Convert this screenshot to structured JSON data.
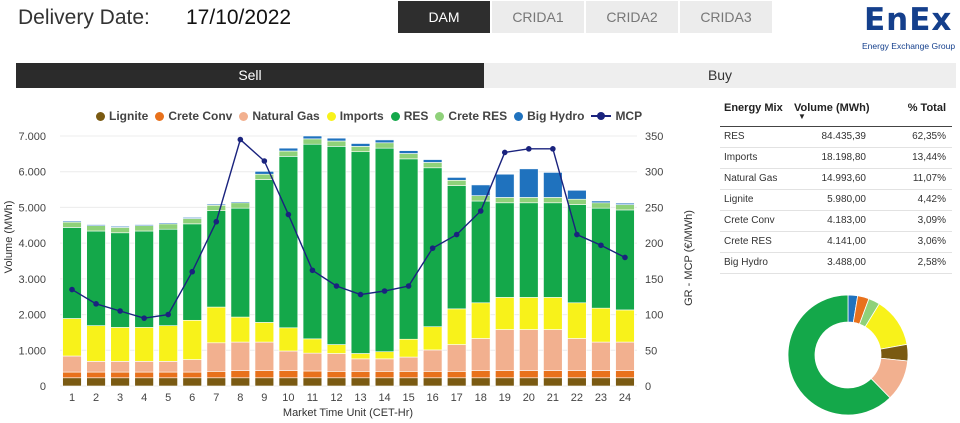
{
  "header": {
    "date_label": "Delivery Date:",
    "date_value": "17/10/2022",
    "tabs": [
      {
        "label": "DAM",
        "active": true
      },
      {
        "label": "CRIDA1",
        "active": false
      },
      {
        "label": "CRIDA2",
        "active": false
      },
      {
        "label": "CRIDA3",
        "active": false
      }
    ],
    "logo_text": "EnEx",
    "logo_subtitle": "Energy Exchange Group"
  },
  "side_toggle": {
    "sell_label": "Sell",
    "buy_label": "Buy",
    "selected": "Sell"
  },
  "colors": {
    "Lignite": "#7a5a12",
    "Crete Conv": "#e8711c",
    "Natural Gas": "#f2b08f",
    "Imports": "#f8f21a",
    "RES": "#14a84a",
    "Crete RES": "#8fd17a",
    "Big Hydro": "#1f72be",
    "MCP": "#1a237e"
  },
  "chart_data": {
    "type": "bar",
    "stacked": true,
    "xlabel": "Market Time Unit (CET-Hr)",
    "ylabel": "Volume (MWh)",
    "y2label": "GR - MCP (€/MWh)",
    "ylim": [
      0,
      7000
    ],
    "y2lim": [
      0,
      350
    ],
    "yticks": [
      "0",
      "1.000",
      "2.000",
      "3.000",
      "4.000",
      "5.000",
      "6.000",
      "7.000"
    ],
    "y2ticks": [
      "0",
      "50",
      "100",
      "150",
      "200",
      "250",
      "300",
      "350"
    ],
    "categories": [
      "1",
      "2",
      "3",
      "4",
      "5",
      "6",
      "7",
      "8",
      "9",
      "10",
      "11",
      "12",
      "13",
      "14",
      "15",
      "16",
      "17",
      "18",
      "19",
      "20",
      "21",
      "22",
      "23",
      "24"
    ],
    "legend_position": "top",
    "series": [
      {
        "name": "Lignite",
        "values": [
          230,
          230,
          230,
          230,
          230,
          230,
          230,
          230,
          230,
          230,
          230,
          230,
          230,
          230,
          230,
          230,
          230,
          230,
          230,
          230,
          230,
          230,
          230,
          230
        ]
      },
      {
        "name": "Crete Conv",
        "values": [
          160,
          160,
          160,
          160,
          160,
          160,
          180,
          200,
          200,
          200,
          190,
          180,
          180,
          180,
          180,
          180,
          180,
          200,
          200,
          200,
          200,
          200,
          200,
          200
        ]
      },
      {
        "name": "Natural Gas",
        "values": [
          450,
          300,
          300,
          300,
          300,
          350,
          800,
          800,
          800,
          550,
          500,
          500,
          350,
          350,
          400,
          600,
          750,
          900,
          1150,
          1150,
          1150,
          900,
          800,
          800
        ]
      },
      {
        "name": "Imports",
        "values": [
          1050,
          1000,
          950,
          950,
          1000,
          1100,
          1000,
          700,
          550,
          650,
          400,
          250,
          150,
          200,
          500,
          650,
          1000,
          1000,
          900,
          900,
          900,
          1000,
          950,
          900
        ]
      },
      {
        "name": "RES",
        "values": [
          2550,
          2650,
          2650,
          2700,
          2700,
          2700,
          2700,
          3050,
          4000,
          4800,
          5450,
          5550,
          5650,
          5700,
          5050,
          4450,
          3450,
          2850,
          2650,
          2650,
          2650,
          2750,
          2800,
          2800
        ]
      },
      {
        "name": "Crete RES",
        "values": [
          150,
          150,
          150,
          150,
          150,
          150,
          150,
          150,
          150,
          150,
          150,
          150,
          150,
          150,
          150,
          150,
          150,
          150,
          150,
          150,
          150,
          150,
          150,
          150
        ]
      },
      {
        "name": "Big Hydro",
        "values": [
          30,
          30,
          30,
          30,
          30,
          30,
          30,
          30,
          80,
          80,
          80,
          80,
          80,
          80,
          80,
          80,
          80,
          300,
          650,
          800,
          700,
          250,
          50,
          40
        ]
      }
    ],
    "line_series": {
      "name": "MCP",
      "axis": "right",
      "values": [
        135,
        115,
        105,
        95,
        100,
        160,
        230,
        345,
        315,
        240,
        162,
        140,
        128,
        133,
        140,
        193,
        212,
        245,
        327,
        332,
        332,
        212,
        197,
        180
      ]
    }
  },
  "energy_mix": {
    "headers": {
      "source": "Energy Mix",
      "volume": "Volume (MWh)",
      "share": "% Total"
    },
    "rows": [
      {
        "source": "RES",
        "volume": "84.435,39",
        "share": "62,35%"
      },
      {
        "source": "Imports",
        "volume": "18.198,80",
        "share": "13,44%"
      },
      {
        "source": "Natural Gas",
        "volume": "14.993,60",
        "share": "11,07%"
      },
      {
        "source": "Lignite",
        "volume": "5.980,00",
        "share": "4,42%"
      },
      {
        "source": "Crete Conv",
        "volume": "4.183,00",
        "share": "3,09%"
      },
      {
        "source": "Crete RES",
        "volume": "4.141,00",
        "share": "3,06%"
      },
      {
        "source": "Big Hydro",
        "volume": "3.488,00",
        "share": "2,58%"
      }
    ],
    "donut": [
      {
        "name": "Big Hydro",
        "value": 2.58
      },
      {
        "name": "Crete Conv",
        "value": 3.09
      },
      {
        "name": "Crete RES",
        "value": 3.06
      },
      {
        "name": "Imports",
        "value": 13.44
      },
      {
        "name": "Lignite",
        "value": 4.42
      },
      {
        "name": "Natural Gas",
        "value": 11.07
      },
      {
        "name": "RES",
        "value": 62.35
      }
    ]
  }
}
